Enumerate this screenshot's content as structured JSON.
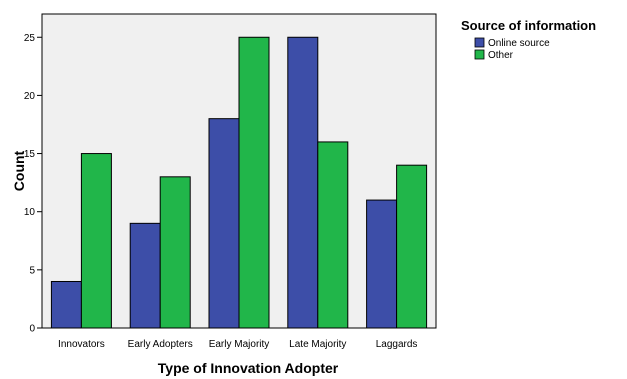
{
  "chart_data": {
    "type": "bar",
    "xlabel": "Type of Innovation Adopter",
    "ylabel": "Count",
    "categories": [
      "Innovators",
      "Early Adopters",
      "Early Majority",
      "Late Majority",
      "Laggards"
    ],
    "series": [
      {
        "name": "Online source",
        "values": [
          4,
          9,
          18,
          25,
          11
        ],
        "color": "#3d4ea8"
      },
      {
        "name": "Other",
        "values": [
          15,
          13,
          25,
          16,
          14
        ],
        "color": "#21b64a"
      }
    ],
    "ylim": [
      0,
      27
    ],
    "yticks": [
      0,
      5,
      10,
      15,
      20,
      25
    ],
    "grid": false,
    "background": "#f0f0f0",
    "legend": {
      "title": "Source of information",
      "placement": "top-right"
    }
  }
}
